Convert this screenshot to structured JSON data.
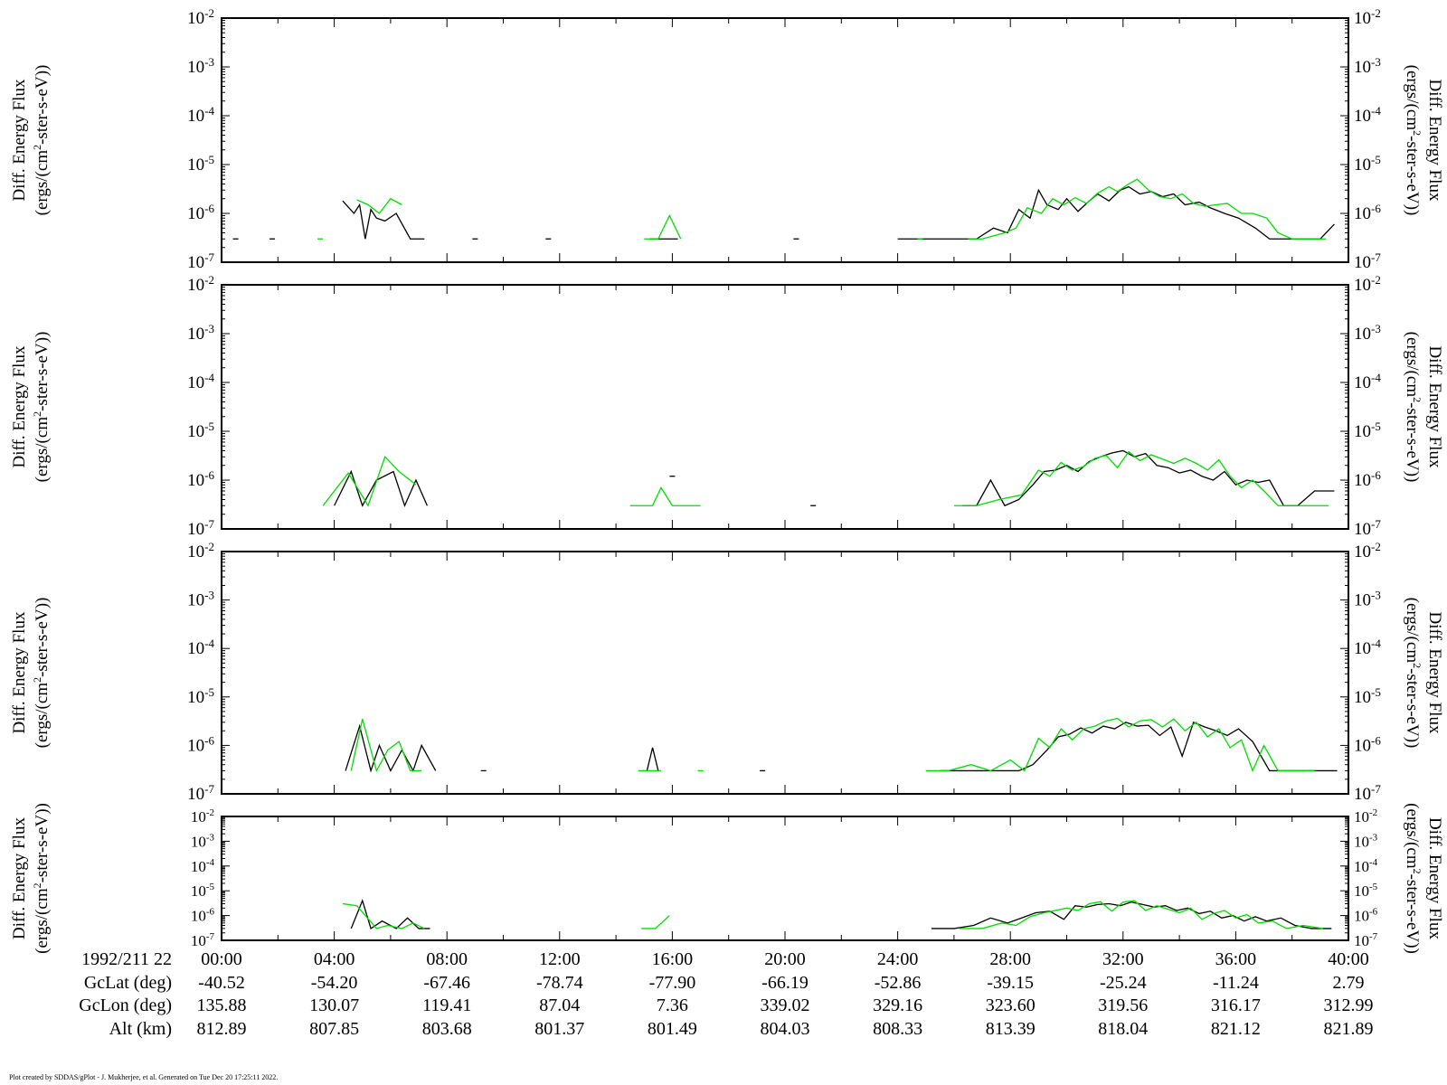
{
  "colors": {
    "series_primary": "#000000",
    "series_secondary": "#00dd00",
    "axis": "#000000"
  },
  "chart_data": [
    {
      "type": "line",
      "panel": 1,
      "yscale": "log",
      "ylim": [
        1e-07,
        0.01
      ],
      "xlim": [
        "00:00",
        "40:00"
      ],
      "ylabel": "Diff. Energy Flux",
      "yunit": "(ergs/(cm²-ster-s-eV))",
      "series": [
        {
          "x": [
            0.5,
            1.8,
            4.3,
            4.7,
            4.9,
            5.1,
            5.3,
            5.5,
            5.8,
            6.2,
            6.7,
            7.2,
            9.0,
            11.6,
            15.2,
            16.2,
            20.4,
            24.0,
            24.7,
            25.4,
            26.0,
            26.8,
            27.4,
            27.9,
            28.3,
            28.7,
            29.0,
            29.3,
            29.7,
            30.0,
            30.4,
            30.8,
            31.1,
            31.5,
            31.9,
            32.2,
            32.6,
            33.0,
            33.4,
            33.8,
            34.2,
            34.7,
            35.1,
            35.6,
            36.1,
            36.7,
            37.2,
            37.8,
            38.3,
            39.0,
            39.5
          ],
          "y": [
            3e-07,
            3e-07,
            1.8e-06,
            1e-06,
            1.5e-06,
            3e-07,
            1.2e-06,
            8e-07,
            7e-07,
            1e-06,
            3e-07,
            3e-07,
            3e-07,
            3e-07,
            3e-07,
            3e-07,
            3e-07,
            3e-07,
            3e-07,
            3e-07,
            3e-07,
            3e-07,
            5e-07,
            4e-07,
            1.2e-06,
            8e-07,
            3e-06,
            1.5e-06,
            1.2e-06,
            2e-06,
            1.1e-06,
            1.8e-06,
            2.5e-06,
            1.8e-06,
            3e-06,
            3.5e-06,
            2.5e-06,
            2.8e-06,
            2.2e-06,
            2.5e-06,
            1.5e-06,
            1.7e-06,
            1.3e-06,
            1e-06,
            8e-07,
            5e-07,
            3e-07,
            3e-07,
            3e-07,
            3e-07,
            6e-07
          ]
        },
        {
          "x": [
            3.5,
            4.8,
            5.2,
            5.6,
            6.0,
            6.4,
            15.0,
            15.5,
            15.9,
            16.3,
            24.8,
            26.5,
            27.0,
            27.8,
            28.2,
            28.6,
            29.1,
            29.5,
            29.9,
            30.3,
            30.7,
            31.1,
            31.5,
            31.8,
            32.2,
            32.5,
            32.9,
            33.3,
            33.7,
            34.1,
            34.5,
            34.9,
            35.3,
            35.7,
            36.2,
            36.6,
            37.1,
            37.5,
            38.0,
            38.5,
            39.2
          ],
          "y": [
            3e-07,
            1.9e-06,
            1.5e-06,
            1e-06,
            2e-06,
            1.5e-06,
            3e-07,
            3e-07,
            9e-07,
            3e-07,
            3e-07,
            3e-07,
            3e-07,
            4e-07,
            5e-07,
            1.3e-06,
            1e-06,
            2e-06,
            1.5e-06,
            2.1e-06,
            1.6e-06,
            2.6e-06,
            3.5e-06,
            2.8e-06,
            4e-06,
            5e-06,
            3e-06,
            2.2e-06,
            2e-06,
            2.5e-06,
            1.6e-06,
            1.4e-06,
            1.5e-06,
            1.6e-06,
            1e-06,
            1e-06,
            8e-07,
            4e-07,
            3e-07,
            3e-07,
            3e-07
          ]
        }
      ]
    },
    {
      "type": "line",
      "panel": 2,
      "yscale": "log",
      "ylim": [
        1e-07,
        0.01
      ],
      "xlim": [
        "00:00",
        "40:00"
      ],
      "ylabel": "Diff. Energy Flux",
      "yunit": "(ergs/(cm²-ster-s-eV))",
      "series": [
        {
          "x": [
            4.0,
            4.6,
            5.0,
            5.5,
            6.1,
            6.5,
            6.9,
            7.3,
            16.0,
            21.0,
            26.3,
            26.8,
            27.3,
            27.8,
            28.3,
            28.8,
            29.2,
            29.6,
            30.0,
            30.4,
            30.8,
            31.2,
            31.6,
            32.0,
            32.4,
            32.8,
            33.2,
            33.6,
            34.0,
            34.4,
            34.8,
            35.2,
            35.6,
            36.0,
            36.4,
            36.8,
            37.2,
            37.7,
            38.2,
            38.8,
            39.5
          ],
          "y": [
            3e-07,
            1.5e-06,
            3e-07,
            1e-06,
            1.5e-06,
            3e-07,
            1e-06,
            3e-07,
            1.2e-06,
            3e-07,
            3e-07,
            3e-07,
            1e-06,
            3e-07,
            4e-07,
            8e-07,
            1.5e-06,
            1.6e-06,
            2e-06,
            1.5e-06,
            2.4e-06,
            3e-06,
            3.6e-06,
            4e-06,
            3e-06,
            3.5e-06,
            2e-06,
            1.8e-06,
            1.4e-06,
            1.6e-06,
            1.2e-06,
            1e-06,
            1.5e-06,
            8e-07,
            1e-06,
            9e-07,
            1e-06,
            3e-07,
            3e-07,
            6e-07,
            6e-07
          ]
        },
        {
          "x": [
            3.6,
            4.5,
            5.2,
            5.8,
            6.3,
            6.9,
            14.5,
            15.3,
            15.6,
            16.0,
            17.0,
            26.0,
            26.8,
            27.6,
            28.4,
            29.0,
            29.4,
            29.8,
            30.2,
            30.6,
            31.0,
            31.4,
            31.8,
            32.2,
            32.6,
            33.0,
            33.4,
            33.8,
            34.2,
            34.6,
            35.0,
            35.4,
            35.8,
            36.2,
            36.6,
            37.0,
            37.5,
            38.0,
            38.6,
            39.3
          ],
          "y": [
            3e-07,
            1.4e-06,
            3e-07,
            3e-06,
            1.5e-06,
            8e-07,
            3e-07,
            3e-07,
            7e-07,
            3e-07,
            3e-07,
            3e-07,
            3e-07,
            4e-07,
            5e-07,
            1.6e-06,
            1.2e-06,
            2.3e-06,
            1.6e-06,
            1.9e-06,
            2.8e-06,
            3.2e-06,
            1.8e-06,
            3.8e-06,
            2.5e-06,
            3.3e-06,
            2.7e-06,
            2.2e-06,
            2.8e-06,
            2.2e-06,
            1.6e-06,
            2.6e-06,
            1.2e-06,
            7e-07,
            1e-06,
            6e-07,
            3e-07,
            3e-07,
            3e-07,
            3e-07
          ]
        }
      ]
    },
    {
      "type": "line",
      "panel": 3,
      "yscale": "log",
      "ylim": [
        1e-07,
        0.01
      ],
      "xlim": [
        "00:00",
        "40:00"
      ],
      "ylabel": "Diff. Energy Flux",
      "yunit": "(ergs/(cm²-ster-s-eV))",
      "series": [
        {
          "x": [
            4.4,
            4.9,
            5.3,
            5.6,
            6.0,
            6.4,
            6.8,
            7.1,
            7.6,
            9.3,
            15.1,
            15.3,
            15.5,
            19.2,
            25.5,
            26.5,
            27.2,
            27.8,
            28.3,
            28.8,
            29.3,
            29.7,
            30.1,
            30.5,
            30.9,
            31.3,
            31.7,
            32.1,
            32.5,
            32.9,
            33.3,
            33.7,
            34.1,
            34.5,
            34.9,
            35.3,
            35.7,
            36.1,
            36.6,
            37.2,
            38.3,
            38.9,
            39.6
          ],
          "y": [
            3e-07,
            2.5e-06,
            3e-07,
            1e-06,
            3e-07,
            8e-07,
            3e-07,
            1e-06,
            3e-07,
            3e-07,
            3e-07,
            9e-07,
            3e-07,
            3e-07,
            3e-07,
            3e-07,
            3e-07,
            3e-07,
            3e-07,
            4e-07,
            8e-07,
            1.5e-06,
            1.7e-06,
            2.3e-06,
            1.8e-06,
            2.5e-06,
            2.2e-06,
            3e-06,
            2.5e-06,
            2.6e-06,
            1.6e-06,
            2.4e-06,
            6e-07,
            3e-06,
            2.4e-06,
            2e-06,
            1.6e-06,
            2.2e-06,
            1.2e-06,
            3e-07,
            3e-07,
            3e-07,
            3e-07
          ]
        },
        {
          "x": [
            4.6,
            5.0,
            5.5,
            5.9,
            6.3,
            6.7,
            7.1,
            14.8,
            15.6,
            17.0,
            25.0,
            25.8,
            26.6,
            27.3,
            28.0,
            28.5,
            29.0,
            29.4,
            29.8,
            30.2,
            30.6,
            31.0,
            31.4,
            31.8,
            32.2,
            32.6,
            33.0,
            33.4,
            33.8,
            34.2,
            34.6,
            35.0,
            35.4,
            35.8,
            36.2,
            36.6,
            37.0,
            37.5,
            38.0,
            38.8
          ],
          "y": [
            3e-07,
            3.5e-06,
            3e-07,
            8e-07,
            1.2e-06,
            3e-07,
            3e-07,
            3e-07,
            3e-07,
            3e-07,
            3e-07,
            3e-07,
            4e-07,
            3e-07,
            5e-07,
            3e-07,
            1.4e-06,
            9e-07,
            2.2e-06,
            1.3e-06,
            2.2e-06,
            2.5e-06,
            3.2e-06,
            3.6e-06,
            2.4e-06,
            3.2e-06,
            3.4e-06,
            2.4e-06,
            3.5e-06,
            2e-06,
            3e-06,
            1.5e-06,
            2.2e-06,
            9e-07,
            1.3e-06,
            3e-07,
            1e-06,
            3e-07,
            3e-07,
            3e-07
          ]
        }
      ]
    },
    {
      "type": "line",
      "panel": 4,
      "yscale": "log",
      "ylim": [
        1e-07,
        0.01
      ],
      "xlim": [
        "00:00",
        "40:00"
      ],
      "ylabel": "Diff. Energy Flux",
      "yunit": "(ergs/(cm²-ster-s-eV))",
      "series": [
        {
          "x": [
            4.6,
            5.0,
            5.3,
            5.7,
            6.2,
            6.6,
            7.0,
            7.4,
            25.2,
            26.0,
            26.7,
            27.3,
            27.9,
            28.4,
            28.9,
            29.4,
            29.9,
            30.3,
            30.7,
            31.1,
            31.5,
            31.9,
            32.3,
            32.7,
            33.1,
            33.5,
            33.9,
            34.3,
            34.7,
            35.1,
            35.5,
            35.9,
            36.3,
            36.7,
            37.1,
            37.6,
            38.1,
            38.7,
            39.4
          ],
          "y": [
            3e-07,
            4e-06,
            3e-07,
            6e-07,
            3e-07,
            8e-07,
            3e-07,
            3e-07,
            3e-07,
            3e-07,
            4e-07,
            8e-07,
            5e-07,
            8e-07,
            1.3e-06,
            1.5e-06,
            7e-07,
            2.5e-06,
            2.2e-06,
            2.8e-06,
            3e-06,
            2.5e-06,
            3.5e-06,
            2.8e-06,
            2.2e-06,
            2.5e-06,
            1.6e-06,
            2e-06,
            1.2e-06,
            1.5e-06,
            8e-07,
            1e-06,
            6e-07,
            9e-07,
            6e-07,
            8e-07,
            4e-07,
            3e-07,
            3e-07
          ]
        },
        {
          "x": [
            4.3,
            4.8,
            5.5,
            5.9,
            6.4,
            6.8,
            7.2,
            14.9,
            15.4,
            15.9,
            26.2,
            27.0,
            27.7,
            28.2,
            28.7,
            29.2,
            29.6,
            30.0,
            30.4,
            30.8,
            31.2,
            31.6,
            32.0,
            32.4,
            32.8,
            33.2,
            33.6,
            34.0,
            34.4,
            34.8,
            35.2,
            35.6,
            36.0,
            36.4,
            36.8,
            37.3,
            37.8,
            38.4,
            39.1
          ],
          "y": [
            3e-06,
            2.5e-06,
            3e-07,
            4e-07,
            3e-07,
            5e-07,
            3e-07,
            3e-07,
            3e-07,
            1e-06,
            3e-07,
            3e-07,
            5e-07,
            4e-07,
            9e-07,
            1.3e-06,
            1.6e-06,
            2e-06,
            1.6e-06,
            3e-06,
            3.6e-06,
            1.5e-06,
            3.5e-06,
            4e-06,
            1.6e-06,
            2.5e-06,
            1.8e-06,
            1.3e-06,
            2e-06,
            7e-07,
            1.2e-06,
            1.6e-06,
            8e-07,
            1.1e-06,
            5e-07,
            6e-07,
            3e-07,
            4e-07,
            3e-07
          ]
        }
      ]
    }
  ],
  "panels": [
    {
      "ylabel_left": "Diff. Energy Flux",
      "yunit_left": "(ergs/(cm",
      "yunit_left_tail": "-ster-s-eV))",
      "ylabel_right": "Diff. Energy Flux",
      "yunit_right": "(ergs/(cm",
      "yunit_right_tail": "-ster-s-eV))"
    },
    {
      "ylabel_left": "Diff. Energy Flux",
      "yunit_left": "(ergs/(cm",
      "yunit_left_tail": "-ster-s-eV))",
      "ylabel_right": "Diff. Energy Flux",
      "yunit_right": "(ergs/(cm",
      "yunit_right_tail": "-ster-s-eV))"
    },
    {
      "ylabel_left": "Diff. Energy Flux",
      "yunit_left": "(ergs/(cm",
      "yunit_left_tail": "-ster-s-eV))",
      "ylabel_right": "Diff. Energy Flux",
      "yunit_right": "(ergs/(cm",
      "yunit_right_tail": "-ster-s-eV))"
    },
    {
      "ylabel_left": "Diff. Energy Flux",
      "yunit_left": "(ergs/(cm",
      "yunit_left_tail": "-ster-s-eV))",
      "ylabel_right": "Diff. Energy Flux",
      "yunit_right": "(ergs/(cm",
      "yunit_right_tail": "-ster-s-eV))"
    }
  ],
  "y_ticks": [
    {
      "base": "10",
      "exp": "-2"
    },
    {
      "base": "10",
      "exp": "-3"
    },
    {
      "base": "10",
      "exp": "-4"
    },
    {
      "base": "10",
      "exp": "-5"
    },
    {
      "base": "10",
      "exp": "-6"
    },
    {
      "base": "10",
      "exp": "-7"
    }
  ],
  "unit_superscript": "2",
  "ephemeris": {
    "rows": [
      {
        "label": "1992/211 22",
        "values": [
          "00:00",
          "04:00",
          "08:00",
          "12:00",
          "16:00",
          "20:00",
          "24:00",
          "28:00",
          "32:00",
          "36:00",
          "40:00"
        ]
      },
      {
        "label": "GcLat (deg)",
        "values": [
          "-40.52",
          "-54.20",
          "-67.46",
          "-78.74",
          "-77.90",
          "-66.19",
          "-52.86",
          "-39.15",
          "-25.24",
          "-11.24",
          "2.79"
        ]
      },
      {
        "label": "GcLon (deg)",
        "values": [
          "135.88",
          "130.07",
          "119.41",
          "87.04",
          "7.36",
          "339.02",
          "329.16",
          "323.60",
          "319.56",
          "316.17",
          "312.99"
        ]
      },
      {
        "label": "Alt (km)",
        "values": [
          "812.89",
          "807.85",
          "803.68",
          "801.37",
          "801.49",
          "804.03",
          "808.33",
          "813.39",
          "818.04",
          "821.12",
          "821.89"
        ]
      }
    ]
  },
  "footer": "Plot created by SDDAS/gPlot - J. Mukherjee, et al.  Generated on Tue Dec 20 17:25:11 2022."
}
